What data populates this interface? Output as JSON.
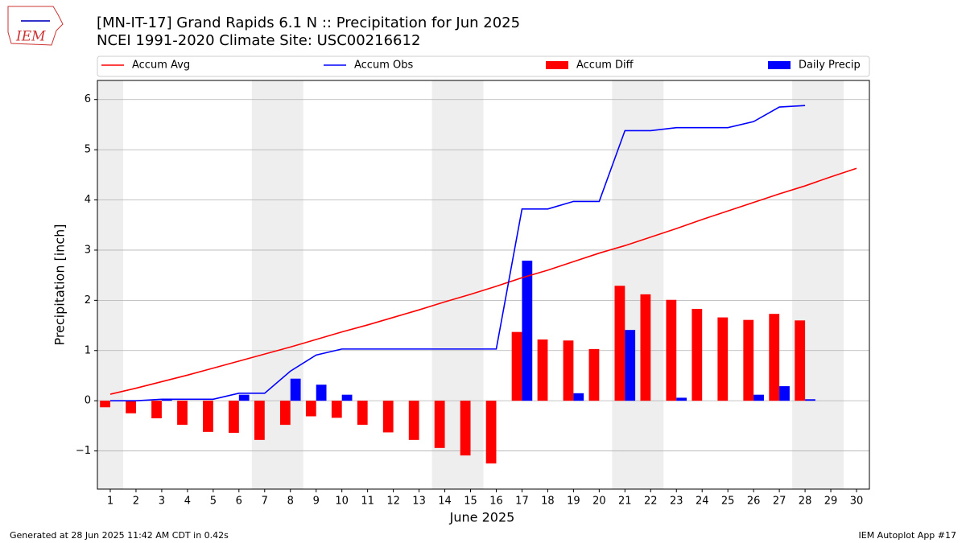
{
  "chart_data": {
    "type": "combo",
    "title": "[MN-IT-17] Grand Rapids 6.1 N :: Precipitation for Jun 2025",
    "subtitle": "NCEI 1991-2020 Climate Site: USC00216612",
    "logo_text": "IEM",
    "x_label": "June 2025",
    "y_label": "Precipitation [inch]",
    "footer_left": "Generated at 28 Jun 2025 11:42 AM CDT in 0.42s",
    "footer_right": "IEM Autoplot App #17",
    "x": [
      1,
      2,
      3,
      4,
      5,
      6,
      7,
      8,
      9,
      10,
      11,
      12,
      13,
      14,
      15,
      16,
      17,
      18,
      19,
      20,
      21,
      22,
      23,
      24,
      25,
      26,
      27,
      28,
      29,
      30
    ],
    "xlim": [
      0.5,
      30.5
    ],
    "xticks": [
      1,
      2,
      3,
      4,
      5,
      6,
      7,
      8,
      9,
      10,
      11,
      12,
      13,
      14,
      15,
      16,
      17,
      18,
      19,
      20,
      21,
      22,
      23,
      24,
      25,
      26,
      27,
      28,
      29,
      30
    ],
    "ylim": [
      -1.76,
      6.38
    ],
    "yticks": [
      {
        "value": -1,
        "label": "−1"
      },
      0,
      1,
      2,
      3,
      4,
      5,
      6
    ],
    "grid": true,
    "shaded_spans": [
      [
        0.5,
        1.5
      ],
      [
        6.5,
        8.5
      ],
      [
        13.5,
        15.5
      ],
      [
        20.5,
        22.5
      ],
      [
        27.5,
        29.5
      ]
    ],
    "shade_color": "#eeeeee",
    "series": [
      {
        "name": "Accum Avg",
        "kind": "line",
        "color": "#ff0000",
        "values": [
          0.13,
          0.25,
          0.38,
          0.51,
          0.65,
          0.79,
          0.93,
          1.07,
          1.22,
          1.37,
          1.51,
          1.66,
          1.81,
          1.97,
          2.12,
          2.28,
          2.45,
          2.6,
          2.77,
          2.94,
          3.09,
          3.26,
          3.43,
          3.61,
          3.78,
          3.95,
          4.12,
          4.28,
          4.46,
          4.63
        ]
      },
      {
        "name": "Accum Obs",
        "kind": "line",
        "color": "#0000ff",
        "values": [
          0,
          0,
          0.03,
          0.03,
          0.03,
          0.15,
          0.15,
          0.59,
          0.91,
          1.03,
          1.03,
          1.03,
          1.03,
          1.03,
          1.03,
          1.03,
          3.82,
          3.82,
          3.97,
          3.97,
          5.38,
          5.38,
          5.44,
          5.44,
          5.44,
          5.56,
          5.85,
          5.88,
          null,
          null
        ]
      },
      {
        "name": "Accum Diff",
        "kind": "bar",
        "offset": -0.4,
        "color": "#ff0000",
        "values": [
          -0.13,
          -0.25,
          -0.35,
          -0.48,
          -0.62,
          -0.64,
          -0.78,
          -0.48,
          -0.31,
          -0.34,
          -0.48,
          -0.63,
          -0.78,
          -0.94,
          -1.09,
          -1.25,
          1.37,
          1.22,
          1.2,
          1.03,
          2.29,
          2.12,
          2.01,
          1.83,
          1.66,
          1.61,
          1.73,
          1.6,
          null,
          null
        ]
      },
      {
        "name": "Daily Precip",
        "kind": "bar",
        "offset": 0,
        "color": "#0000ff",
        "values": [
          0,
          0,
          0.03,
          0,
          0,
          0.12,
          0,
          0.44,
          0.32,
          0.12,
          0,
          0,
          0,
          0,
          0,
          0,
          2.79,
          0,
          0.15,
          0,
          1.41,
          0,
          0.06,
          0,
          0,
          0.12,
          0.29,
          0.03,
          null,
          null
        ]
      }
    ]
  }
}
